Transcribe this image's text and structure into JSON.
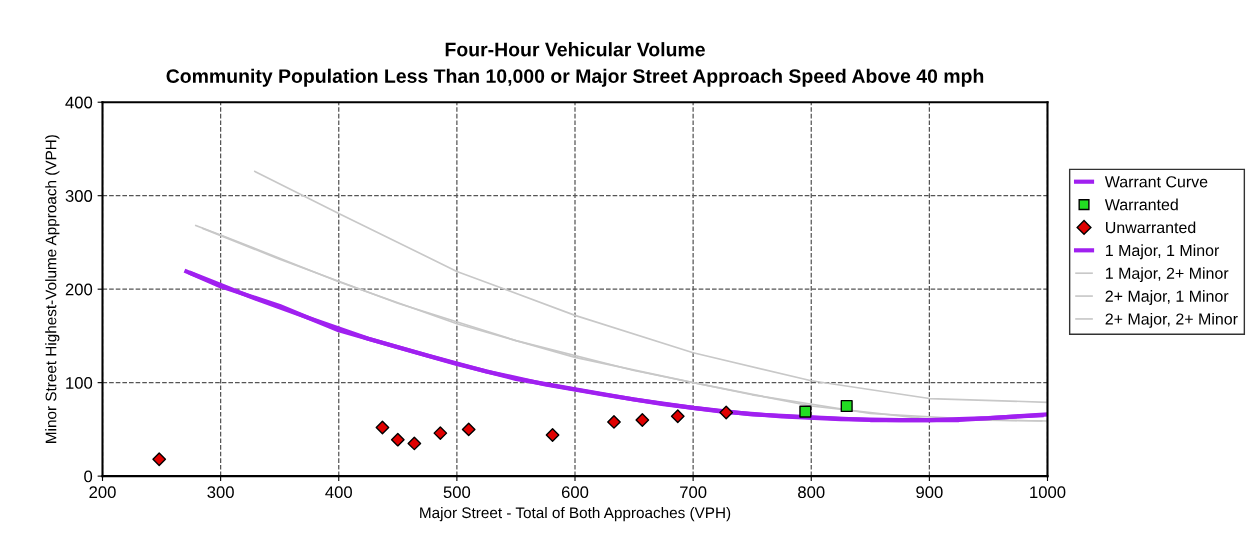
{
  "chart_data": {
    "type": "line",
    "title": "Four-Hour Vehicular Volume\nCommunity Population Less Than 10,000 or Major Street Approach Speed Above 40 mph",
    "xlabel": "Major Street - Total of Both Approaches (VPH)",
    "ylabel": "Minor Street Highest-Volume Approach (VPH)",
    "xlim": [
      200,
      1000
    ],
    "xticks": [
      200,
      300,
      400,
      500,
      600,
      700,
      800,
      900,
      1000
    ],
    "ylim": [
      0,
      400
    ],
    "yticks": [
      0,
      100,
      200,
      300,
      400
    ],
    "grid": true,
    "legend": "right",
    "series": [
      {
        "name": "Warrant Curve",
        "color": "#a020f0",
        "marker": "none",
        "x": [
          271,
          300,
          350,
          400,
          450,
          500,
          550,
          600,
          650,
          700,
          750,
          800,
          850,
          900,
          950,
          1000
        ],
        "values": [
          219,
          203,
          182,
          156,
          138,
          120,
          104,
          93,
          82,
          73,
          66,
          63,
          60,
          60,
          62,
          66
        ]
      },
      {
        "name": "Warranted",
        "type": "scatter",
        "color": "#22dd22",
        "marker": "square",
        "x": [
          795,
          830
        ],
        "values": [
          69,
          75
        ]
      },
      {
        "name": "Unwarranted",
        "type": "scatter",
        "color": "#e00000",
        "marker": "diamond",
        "x": [
          248,
          437,
          450,
          464,
          486,
          510,
          581,
          633,
          657,
          687,
          728
        ],
        "values": [
          18,
          52,
          39,
          35,
          46,
          50,
          44,
          58,
          60,
          64,
          68
        ]
      },
      {
        "name": "1 Major, 1 Minor",
        "color": "#a020f0",
        "marker": "none",
        "x": [
          275,
          325,
          375,
          425,
          475,
          525,
          575,
          625,
          675,
          725,
          775,
          825,
          875,
          925,
          975,
          995
        ],
        "values": [
          217,
          192,
          169,
          147,
          129,
          112,
          98,
          87,
          77,
          69,
          64,
          61,
          60,
          60,
          64,
          65
        ]
      },
      {
        "name": "1 Major, 2+ Minor",
        "color": "#c8c8c8",
        "marker": "none",
        "x": [
          279,
          300,
          400,
          500,
          600,
          700,
          800,
          900,
          1000
        ],
        "values": [
          268,
          258,
          208,
          163,
          127,
          100,
          75,
          61,
          59
        ]
      },
      {
        "name": "2+ Major, 1 Minor",
        "color": "#c8c8c8",
        "marker": "none",
        "x": [
          285,
          350,
          450,
          550,
          650,
          750,
          850,
          950,
          995
        ],
        "values": [
          265,
          232,
          185,
          145,
          113,
          87,
          67,
          60,
          59
        ]
      },
      {
        "name": "2+ Major, 2+ Minor",
        "color": "#c8c8c8",
        "marker": "none",
        "x": [
          329,
          400,
          500,
          600,
          700,
          800,
          900,
          1000
        ],
        "values": [
          326,
          281,
          219,
          172,
          132,
          102,
          83,
          79
        ]
      }
    ]
  }
}
